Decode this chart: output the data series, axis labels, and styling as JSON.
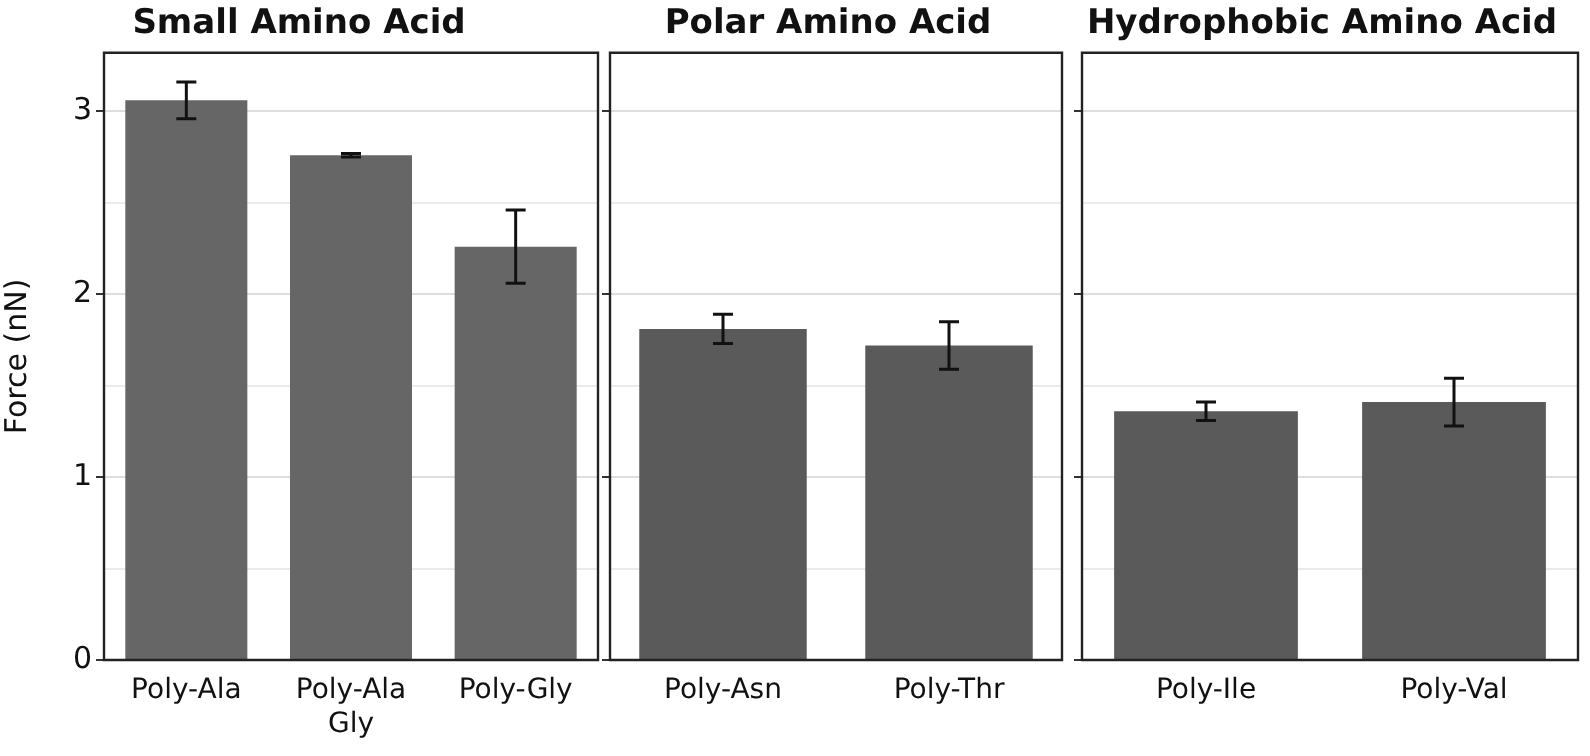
{
  "chart_data": [
    {
      "type": "bar",
      "title": "Small Amino Acid",
      "ylabel": "Force (nN)",
      "categories": [
        "Poly-Ala",
        "Poly-Ala Gly",
        "Poly-Gly"
      ],
      "values": [
        3.06,
        2.76,
        2.26
      ],
      "errors": [
        0.1,
        0.01,
        0.2
      ],
      "color": "#666666",
      "ylim": [
        0,
        3.32
      ],
      "yticks": [
        0,
        {
          "value": 0.5,
          "label": null
        },
        1,
        {
          "value": 1.5,
          "label": null
        },
        2,
        {
          "value": 2.5,
          "label": null
        },
        3
      ],
      "grid": "y"
    },
    {
      "type": "bar",
      "title": "Polar Amino Acid",
      "categories": [
        "Poly-Asn",
        "Poly-Thr"
      ],
      "values": [
        1.81,
        1.72
      ],
      "errors": [
        0.08,
        0.13
      ],
      "color": "#5a5a5a",
      "ylim": [
        0,
        3.32
      ],
      "yticks": [
        0,
        {
          "value": 0.5,
          "label": null
        },
        1,
        {
          "value": 1.5,
          "label": null
        },
        2,
        {
          "value": 2.5,
          "label": null
        },
        3
      ],
      "grid": "y",
      "tick_labels": "x"
    },
    {
      "type": "bar",
      "title": "Hydrophobic Amino Acid",
      "categories": [
        "Poly-Ile",
        "Poly-Val"
      ],
      "values": [
        1.36,
        1.41
      ],
      "errors": [
        0.05,
        0.13
      ],
      "color": "#5a5a5a",
      "ylim": [
        0,
        3.32
      ],
      "yticks": [
        0,
        {
          "value": 0.5,
          "label": null
        },
        1,
        {
          "value": 1.5,
          "label": null
        },
        2,
        {
          "value": 2.5,
          "label": null
        },
        3
      ],
      "grid": "y",
      "tick_labels": "x"
    }
  ]
}
